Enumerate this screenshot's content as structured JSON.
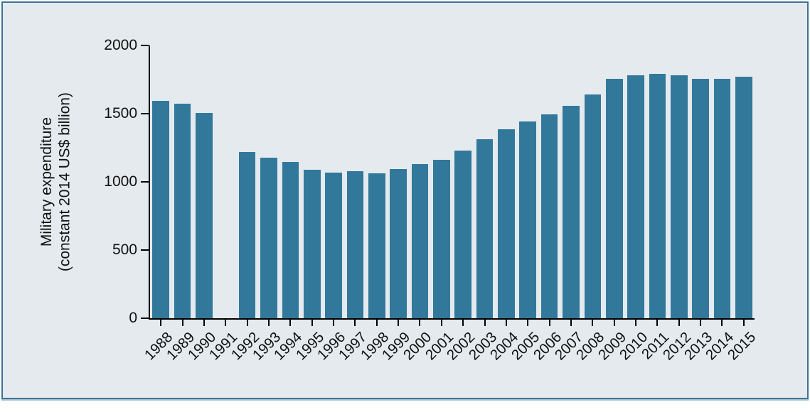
{
  "chart_data": {
    "type": "bar",
    "title": "",
    "ylabel_line1": "Military expenditure",
    "ylabel_line2": "(constant 2014 US$ billion)",
    "xlabel": "",
    "categories": [
      "1988",
      "1989",
      "1990",
      "1991",
      "1992",
      "1993",
      "1994",
      "1995",
      "1996",
      "1997",
      "1998",
      "1999",
      "2000",
      "2001",
      "2002",
      "2003",
      "2004",
      "2005",
      "2006",
      "2007",
      "2008",
      "2009",
      "2010",
      "2011",
      "2012",
      "2013",
      "2014",
      "2015"
    ],
    "values": [
      1595,
      1575,
      1505,
      null,
      1220,
      1175,
      1145,
      1090,
      1070,
      1080,
      1065,
      1095,
      1130,
      1160,
      1230,
      1310,
      1385,
      1445,
      1495,
      1555,
      1640,
      1755,
      1780,
      1790,
      1780,
      1755,
      1755,
      1770
    ],
    "missing_years": [
      "1991"
    ],
    "ylim": [
      0,
      2000
    ],
    "yticks": [
      0,
      500,
      1000,
      1500,
      2000
    ],
    "grid": false,
    "legend": null,
    "colors": {
      "bar": "#32789b",
      "background": "#e4eaee",
      "frame_border": "#3d7396",
      "axis": "#000000",
      "text": "#111111"
    }
  }
}
